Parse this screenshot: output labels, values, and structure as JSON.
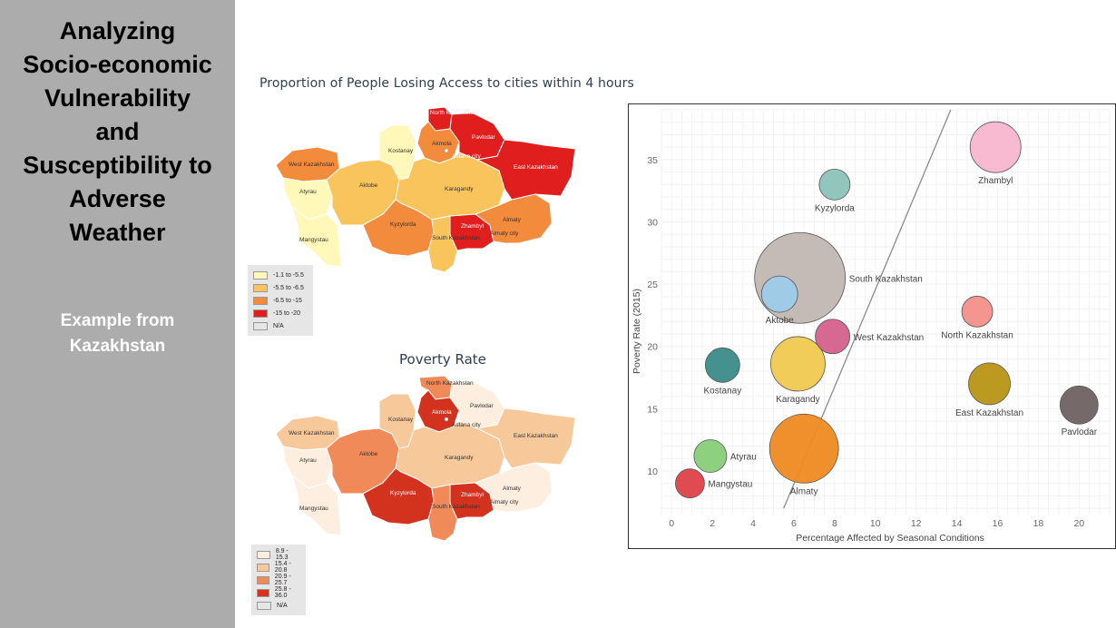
{
  "sidebar": {
    "title_lines": [
      "Analyzing",
      "Socio-economic",
      "Vulnerability",
      "and",
      "Susceptibility to",
      "Adverse",
      "Weather"
    ],
    "subtitle_lines": [
      "Example from",
      "Kazakhstan"
    ],
    "background": "#acacac"
  },
  "map_top": {
    "title": "Proportion of People Losing Access to cities within 4 hours",
    "legend": [
      {
        "label": "-1.1 to -5.5",
        "color": "#fff8b8"
      },
      {
        "label": "-5.5 to -6.5",
        "color": "#f9c45c"
      },
      {
        "label": "-6.5 to -15",
        "color": "#f28b3c"
      },
      {
        "label": "-15 to -20",
        "color": "#e01e1e"
      },
      {
        "label": "N/A",
        "color": "#e6e6e6"
      }
    ],
    "regions": {
      "akmola_north": "North Kazakhstan",
      "akmola": "Akmola",
      "kostanay": "Kostanay",
      "pavlodar": "Pavlodar",
      "west": "West Kazakhstan",
      "aktobe": "Aktobe",
      "atyrau": "Atyrau",
      "astana": "Astana city",
      "east": "East Kazakhstan",
      "karagandy": "Karagandy",
      "kyzylorda": "Kyzylorda",
      "zhambyl": "Zhambyl",
      "almaty": "Almaty",
      "almaty_city": "Almaty city",
      "south": "South Kazakhstan",
      "mangystau": "Mangystau"
    }
  },
  "map_bottom": {
    "title": "Poverty Rate",
    "legend": [
      {
        "label": "8.9 - 15.3",
        "color": "#fdeee0"
      },
      {
        "label": "15.4 - 20.8",
        "color": "#f7c99a"
      },
      {
        "label": "20.9 - 25.7",
        "color": "#f08a58"
      },
      {
        "label": "25.8 - 36.0",
        "color": "#d2321e"
      },
      {
        "label": "N/A",
        "color": "#e6e6e6"
      }
    ],
    "regions": {
      "north": "North Kazakhstan",
      "akmola": "Akmola",
      "kostanay": "Kostanay",
      "pavlodar": "Pavlodar",
      "west": "West Kazakhstan",
      "aktobe": "Aktobe",
      "atyrau": "Atyrau",
      "astana": "Astana city",
      "east": "East Kazakhstan",
      "karagandy": "Karagandy",
      "kyzylorda": "Kyzylorda",
      "zhambyl": "Zhambyl",
      "almaty": "Almaty",
      "almaty_city": "Almaty city",
      "south": "South Kazakhstan",
      "mangystau": "Mangystau"
    }
  },
  "chart_data": {
    "type": "scatter",
    "xlabel": "Percentage Affected by Seasonal Conditions",
    "ylabel": "Poverty Rate (2015)",
    "xlim": [
      -0.5,
      21.5
    ],
    "ylim": [
      6.5,
      39
    ],
    "xticks": [
      0,
      2,
      4,
      6,
      8,
      10,
      12,
      14,
      16,
      18,
      20
    ],
    "yticks": [
      10,
      15,
      20,
      25,
      30,
      35
    ],
    "grid": true,
    "trendline": {
      "x": [
        5.5,
        13.7
      ],
      "y": [
        7,
        39
      ]
    },
    "points": [
      {
        "label": "Zhambyl",
        "x": 15.9,
        "y": 36.0,
        "size": 28,
        "color": "#f8b6cf"
      },
      {
        "label": "Kyzylorda",
        "x": 8.0,
        "y": 33.0,
        "size": 17,
        "color": "#8cc2b8"
      },
      {
        "label": "South Kazakhstan",
        "x": 6.3,
        "y": 25.5,
        "size": 50,
        "color": "#c1b6b2"
      },
      {
        "label": "Aktobe",
        "x": 5.3,
        "y": 24.2,
        "size": 20,
        "color": "#9ecbe9"
      },
      {
        "label": "North Kazakhstan",
        "x": 15.0,
        "y": 22.8,
        "size": 17,
        "color": "#f48f8a"
      },
      {
        "label": "West Kazakhstan",
        "x": 7.9,
        "y": 20.8,
        "size": 19,
        "color": "#d4608b"
      },
      {
        "label": "Kostanay",
        "x": 2.5,
        "y": 18.5,
        "size": 19,
        "color": "#3a8b8a"
      },
      {
        "label": "Karagandy",
        "x": 6.2,
        "y": 18.6,
        "size": 30,
        "color": "#f0c94f"
      },
      {
        "label": "East Kazakhstan",
        "x": 15.6,
        "y": 17.0,
        "size": 23,
        "color": "#b89516"
      },
      {
        "label": "Pavlodar",
        "x": 20.0,
        "y": 15.3,
        "size": 21,
        "color": "#6e6261"
      },
      {
        "label": "Almaty",
        "x": 6.5,
        "y": 11.8,
        "size": 38,
        "color": "#ef8a22"
      },
      {
        "label": "Atyrau",
        "x": 1.9,
        "y": 11.2,
        "size": 18,
        "color": "#87cf78"
      },
      {
        "label": "Mangystau",
        "x": 0.9,
        "y": 9.0,
        "size": 16,
        "color": "#de4148"
      }
    ]
  }
}
